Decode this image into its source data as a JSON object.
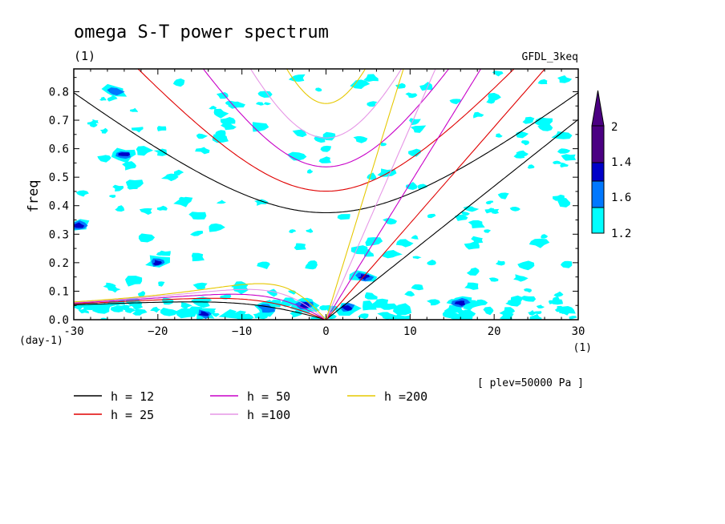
{
  "header": {
    "title": "omega S-T power spectrum",
    "units": "(1)",
    "model": "GFDL_3keq"
  },
  "footer": {
    "plev_note": "[ plev=50000 Pa ]"
  },
  "chart_data": {
    "type": "contour",
    "xlabel": "wvn",
    "ylabel": "freq",
    "x_units": "(1)",
    "y_units": "(day-1)",
    "xlim": [
      -30,
      30
    ],
    "ylim": [
      0,
      0.88
    ],
    "xticks": [
      -30,
      -20,
      -10,
      0,
      10,
      20,
      30
    ],
    "xtick_labels": [
      "-30",
      "−20",
      "−10",
      "0",
      "10",
      "20",
      "30"
    ],
    "yticks": [
      0,
      0.1,
      0.2,
      0.3,
      0.4,
      0.5,
      0.6,
      0.7,
      0.8
    ],
    "ytick_labels": [
      "0.0",
      "0.1",
      "0.2",
      "0.3",
      "0.4",
      "0.5",
      "0.6",
      "0.7",
      "0.8"
    ],
    "colorbar": {
      "levels": [
        "1.2",
        "1.4",
        "1.6",
        "2"
      ],
      "colors": [
        "#00ffff",
        "#0078ff",
        "#0000c8",
        "#4b0082"
      ]
    },
    "dispersion_curves": [
      {
        "label": "h = 12",
        "h": 12,
        "color": "#000000"
      },
      {
        "label": "h = 25",
        "h": 25,
        "color": "#e00000"
      },
      {
        "label": "h = 50",
        "h": 50,
        "color": "#c800c8"
      },
      {
        "label": "h =100",
        "h": 100,
        "color": "#e696e6"
      },
      {
        "label": "h =200",
        "h": 200,
        "color": "#e6c800"
      }
    ],
    "high_power_regions": [
      {
        "x": -29.5,
        "y": 0.33,
        "level": 2
      },
      {
        "x": -24,
        "y": 0.58,
        "level": 2
      },
      {
        "x": -20,
        "y": 0.2,
        "level": 1.6
      },
      {
        "x": -2.5,
        "y": 0.05,
        "level": 2
      },
      {
        "x": 2.5,
        "y": 0.04,
        "level": 2
      },
      {
        "x": 4.5,
        "y": 0.15,
        "level": 1.6
      },
      {
        "x": -14.5,
        "y": 0.02,
        "level": 1.6
      },
      {
        "x": -25,
        "y": 0.8,
        "level": 1.4
      },
      {
        "x": -7,
        "y": 0.04,
        "level": 1.4
      },
      {
        "x": 16,
        "y": 0.06,
        "level": 1.6
      }
    ]
  }
}
